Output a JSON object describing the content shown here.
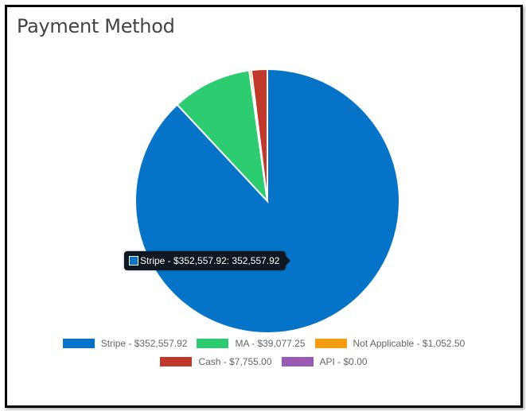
{
  "title": "Payment Method",
  "tooltip": {
    "text": "Stripe - $352,557.92: 352,557.92",
    "color": "#0574c8"
  },
  "chart_data": {
    "type": "pie",
    "title": "Payment Method",
    "legend_position": "bottom",
    "slices": [
      {
        "label": "Stripe - $352,557.92",
        "value": 352557.92,
        "color": "#0574c8"
      },
      {
        "label": "MA - $39,077.25",
        "value": 39077.25,
        "color": "#2ecc71"
      },
      {
        "label": "Not Applicable - $1,052.50",
        "value": 1052.5,
        "color": "#f39c12"
      },
      {
        "label": "Cash - $7,755.00",
        "value": 7755.0,
        "color": "#c0392b"
      },
      {
        "label": "API - $0.00",
        "value": 0.0,
        "color": "#9b59b6"
      }
    ]
  }
}
